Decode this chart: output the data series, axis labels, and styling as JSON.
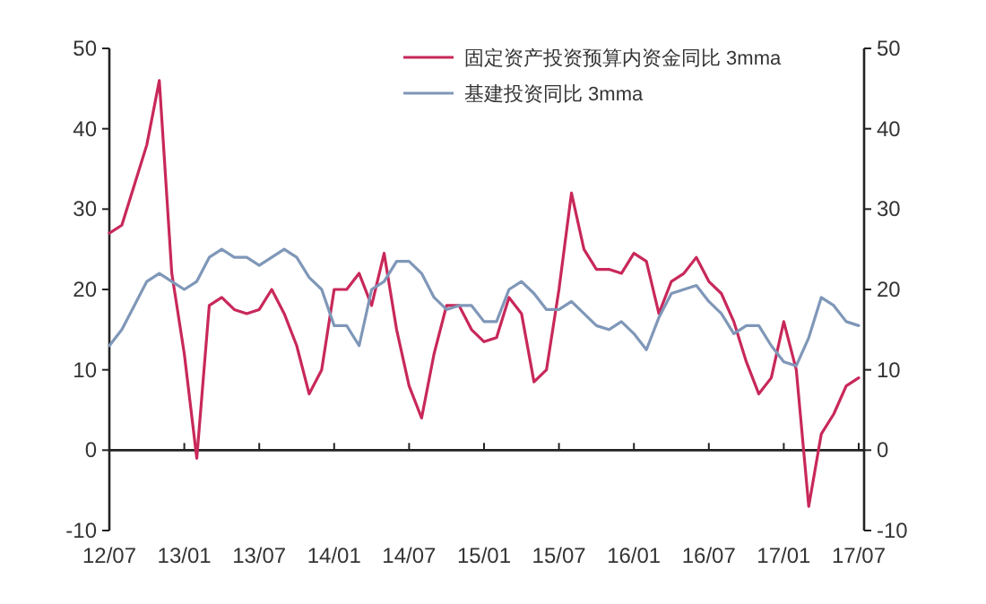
{
  "chart_data": {
    "type": "line",
    "categories": [
      "12/07",
      null,
      null,
      null,
      null,
      null,
      "13/01",
      null,
      null,
      null,
      null,
      null,
      "13/07",
      null,
      null,
      null,
      null,
      null,
      "14/01",
      null,
      null,
      null,
      null,
      null,
      "14/07",
      null,
      null,
      null,
      null,
      null,
      "15/01",
      null,
      null,
      null,
      null,
      null,
      "15/07",
      null,
      null,
      null,
      null,
      null,
      "16/01",
      null,
      null,
      null,
      null,
      null,
      "16/07",
      null,
      null,
      null,
      null,
      null,
      "17/01",
      null,
      null,
      null,
      null,
      null,
      "17/07"
    ],
    "series": [
      {
        "name": "固定资产投资预算内资金同比 3mma",
        "color": "#c8285a",
        "values": [
          27,
          28,
          33,
          38,
          46,
          22,
          12,
          -1,
          18,
          19,
          17.5,
          17,
          17.5,
          20,
          17,
          13,
          7,
          10,
          20,
          20,
          22,
          18,
          24.5,
          15,
          8,
          4,
          12,
          18,
          18,
          15,
          13.5,
          14,
          19,
          17,
          8.5,
          10,
          20,
          32,
          25,
          22.5,
          22.5,
          22,
          24.5,
          23.5,
          17,
          21,
          22,
          24,
          21,
          19.5,
          16,
          11,
          7,
          9,
          16,
          10,
          -7,
          2,
          4.5,
          8,
          9
        ]
      },
      {
        "name": "基建投资同比 3mma",
        "color": "#7f97b8",
        "values": [
          13,
          15,
          18,
          21,
          22,
          21,
          20,
          21,
          24,
          25,
          24,
          24,
          23,
          24,
          25,
          24,
          21.5,
          20,
          15.5,
          15.5,
          13,
          20,
          21,
          23.5,
          23.5,
          22,
          19,
          17.5,
          18,
          18,
          16,
          16,
          20,
          21,
          19.5,
          17.5,
          17.5,
          18.5,
          17,
          15.5,
          15,
          16,
          14.5,
          12.5,
          16.5,
          19.5,
          20,
          20.5,
          18.5,
          17,
          14.5,
          15.5,
          15.5,
          13,
          11,
          10.5,
          14,
          19,
          18,
          16,
          15.5
        ]
      }
    ],
    "ylim": [
      -10,
      50
    ],
    "yticks": [
      -10,
      0,
      10,
      20,
      30,
      40,
      50
    ],
    "y2lim": [
      -10,
      50
    ],
    "y2ticks": [
      -10,
      0,
      10,
      20,
      30,
      40,
      50
    ],
    "legend": "top right"
  }
}
